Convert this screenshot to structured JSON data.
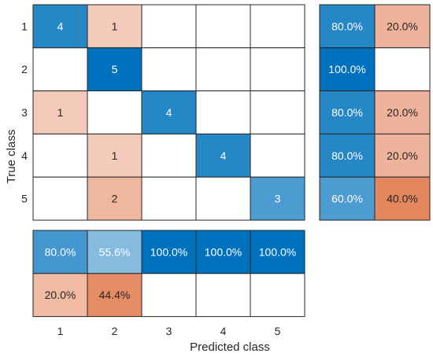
{
  "chart_data": {
    "type": "heatmap",
    "xlabel": "Predicted class",
    "ylabel": "True class",
    "classes": [
      "1",
      "2",
      "3",
      "4",
      "5"
    ],
    "matrix": [
      [
        4,
        1,
        0,
        0,
        0
      ],
      [
        0,
        5,
        0,
        0,
        0
      ],
      [
        1,
        0,
        4,
        0,
        0
      ],
      [
        0,
        1,
        0,
        4,
        0
      ],
      [
        0,
        2,
        0,
        0,
        3
      ]
    ],
    "row_summary": {
      "correct": [
        "80.0%",
        "100.0%",
        "80.0%",
        "80.0%",
        "60.0%"
      ],
      "incorrect": [
        "20.0%",
        "",
        "20.0%",
        "20.0%",
        "40.0%"
      ]
    },
    "column_summary": {
      "correct": [
        "80.0%",
        "55.6%",
        "100.0%",
        "100.0%",
        "100.0%"
      ],
      "incorrect": [
        "20.0%",
        "44.4%",
        "",
        "",
        ""
      ]
    },
    "colors": {
      "correct_max": "#0072bd",
      "incorrect_max": "#d95319",
      "empty": "#ffffff",
      "grid_line": "#262626",
      "text_dark": "#262626",
      "text_light": "#ffffff"
    }
  }
}
